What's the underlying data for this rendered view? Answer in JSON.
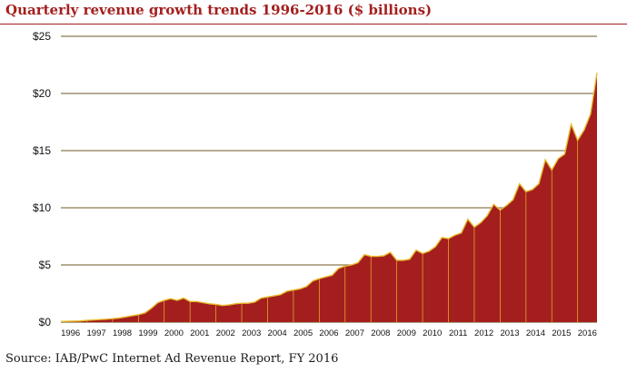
{
  "title": "Quarterly revenue growth trends 1996-2016 ($ billions)",
  "source": "Source: IAB/PwC Internet Ad Revenue Report, FY 2016",
  "colors": {
    "title": "#a31f1f",
    "area_fill": "#a41e1e",
    "area_stroke": "#e8b92c",
    "gridline": "#8c7a52"
  },
  "chart_data": {
    "type": "area",
    "title": "Quarterly revenue growth trends 1996-2016 ($ billions)",
    "xlabel": "",
    "ylabel": "",
    "ylim": [
      0,
      25
    ],
    "yticks": [
      0,
      5,
      10,
      15,
      20,
      25
    ],
    "ytick_labels": [
      "$0",
      "$5",
      "$10",
      "$15",
      "$20",
      "$25"
    ],
    "xtick_labels": [
      "1996",
      "1997",
      "1998",
      "1999",
      "2000",
      "2001",
      "2002",
      "2003",
      "2004",
      "2005",
      "2006",
      "2007",
      "2008",
      "2009",
      "2010",
      "2011",
      "2012",
      "2013",
      "2014",
      "2015",
      "2016"
    ],
    "grid": true,
    "legend": "none",
    "series": [
      {
        "values": [
          0.05,
          0.07,
          0.08,
          0.1,
          0.15,
          0.18,
          0.22,
          0.25,
          0.3,
          0.35,
          0.45,
          0.55,
          0.65,
          0.8,
          1.2,
          1.7,
          1.9,
          2.05,
          1.9,
          2.1,
          1.8,
          1.8,
          1.7,
          1.6,
          1.55,
          1.45,
          1.5,
          1.6,
          1.65,
          1.65,
          1.75,
          2.1,
          2.2,
          2.3,
          2.4,
          2.7,
          2.8,
          2.9,
          3.1,
          3.6,
          3.8,
          3.95,
          4.1,
          4.7,
          4.9,
          5.0,
          5.2,
          5.9,
          5.75,
          5.75,
          5.8,
          6.1,
          5.4,
          5.4,
          5.5,
          6.3,
          6.0,
          6.2,
          6.6,
          7.4,
          7.3,
          7.6,
          7.8,
          9.0,
          8.3,
          8.7,
          9.3,
          10.3,
          9.8,
          10.2,
          10.7,
          12.1,
          11.4,
          11.6,
          12.1,
          14.2,
          13.3,
          14.3,
          14.7,
          17.3,
          15.9,
          16.8,
          18.2,
          21.8
        ]
      }
    ]
  }
}
